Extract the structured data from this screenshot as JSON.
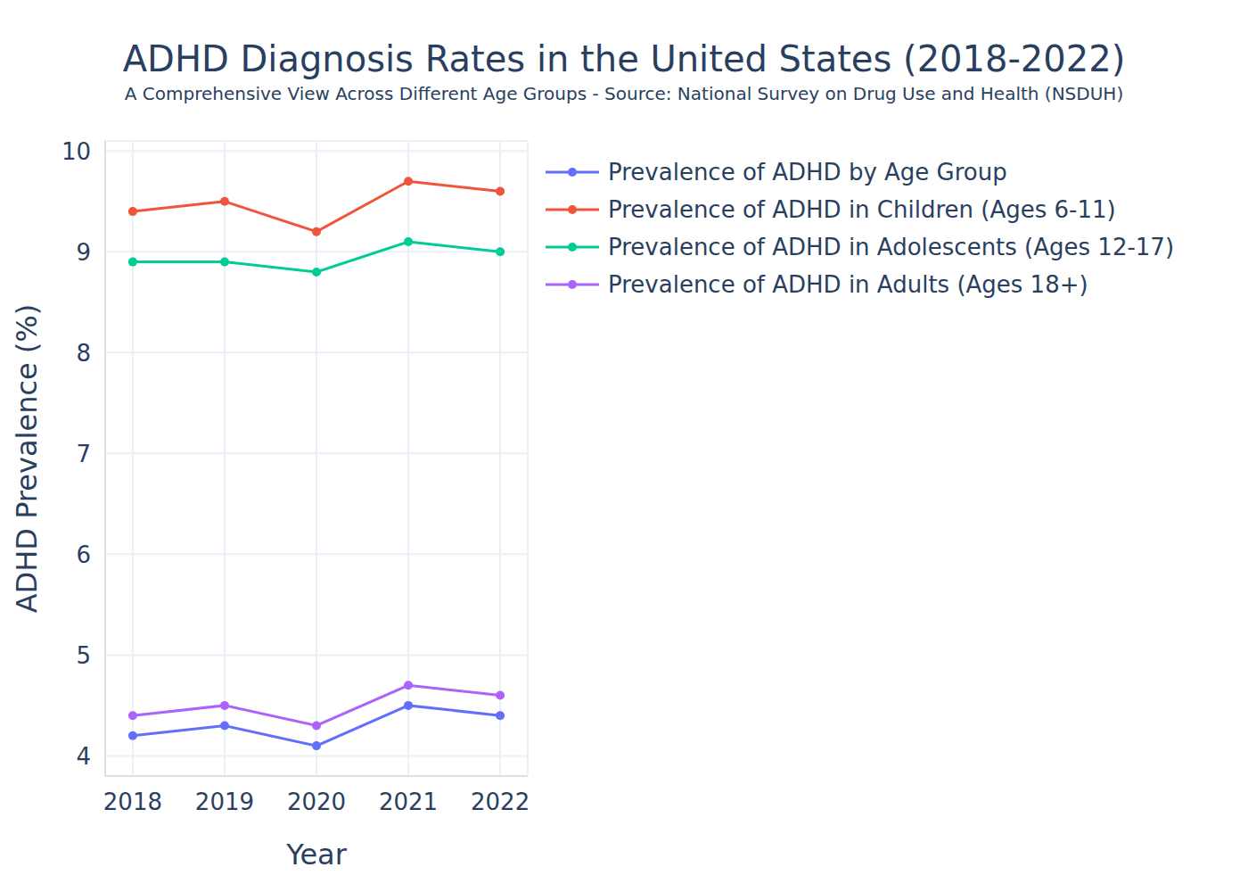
{
  "chart_data": {
    "type": "line",
    "title": "ADHD Diagnosis Rates in the United States (2018-2022)",
    "subtitle": "A Comprehensive View Across Different Age Groups - Source: National Survey on Drug Use and Health (NSDUH)",
    "x_label": "Year",
    "y_label": "ADHD Prevalence (%)",
    "x": [
      2018,
      2019,
      2020,
      2021,
      2022
    ],
    "xlim": [
      2017.7,
      2022.3
    ],
    "xticks": [
      2018,
      2019,
      2020,
      2021,
      2022
    ],
    "ylim": [
      3.8,
      10.1
    ],
    "yticks": [
      4,
      5,
      6,
      7,
      8,
      9,
      10
    ],
    "grid": true,
    "legend": "right",
    "marker": "circle",
    "series": [
      {
        "name": "Prevalence of ADHD by Age Group",
        "color": "#636efa",
        "values": [
          4.2,
          4.3,
          4.1,
          4.5,
          4.4
        ]
      },
      {
        "name": "Prevalence of ADHD in Children (Ages 6-11)",
        "color": "#ef553b",
        "values": [
          9.4,
          9.5,
          9.2,
          9.7,
          9.6
        ]
      },
      {
        "name": "Prevalence of ADHD in Adolescents (Ages 12-17)",
        "color": "#00cc96",
        "values": [
          8.9,
          8.9,
          8.8,
          9.1,
          9.0
        ]
      },
      {
        "name": "Prevalence of ADHD in Adults (Ages 18+)",
        "color": "#ab63fa",
        "values": [
          4.4,
          4.5,
          4.3,
          4.7,
          4.6
        ]
      }
    ]
  }
}
